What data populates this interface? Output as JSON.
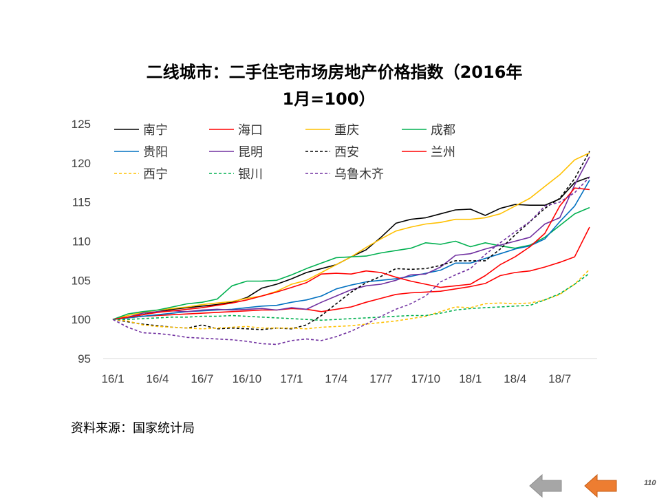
{
  "title_line1": "二线城市：二手住宅市场房地产价格指数（2016年",
  "title_line2": "1月=100）",
  "source": "资料来源：国家统计局",
  "page_number": "110",
  "nav": {
    "prev_icon": "arrow-left-gray-icon",
    "next_icon": "arrow-left-orange-icon",
    "prev_color": "#a6a6a6",
    "next_color": "#ed7d31"
  },
  "chart_data": {
    "type": "line",
    "title": "二线城市：二手住宅市场房地产价格指数（2016年1月=100）",
    "xlabel": "",
    "ylabel": "",
    "ylim": [
      95,
      125
    ],
    "yticks": [
      "95",
      "100",
      "105",
      "110",
      "115",
      "120",
      "125"
    ],
    "x_tick_labels": [
      "16/1",
      "16/4",
      "16/7",
      "16/10",
      "17/1",
      "17/4",
      "17/7",
      "17/10",
      "18/1",
      "18/4",
      "18/7"
    ],
    "n_points": 33,
    "grid": false,
    "legend_position": "top-left",
    "series": [
      {
        "name": "南宁",
        "color": "#000000",
        "dash": "solid",
        "values": [
          100,
          100.3,
          100.6,
          101.0,
          101.3,
          101.5,
          101.7,
          101.9,
          102.2,
          102.8,
          104.0,
          104.5,
          105.2,
          106.0,
          106.5,
          107.0,
          108.0,
          108.9,
          110.5,
          112.3,
          112.8,
          113.0,
          113.5,
          114.0,
          114.1,
          113.3,
          114.2,
          114.7,
          114.6,
          114.6,
          115.4,
          117.5,
          118.2
        ]
      },
      {
        "name": "海口",
        "color": "#ff0000",
        "dash": "solid",
        "values": [
          100,
          100.2,
          100.4,
          100.5,
          100.6,
          100.7,
          100.8,
          100.9,
          101.0,
          101.1,
          101.2,
          101.2,
          101.4,
          101.3,
          101.0,
          101.3,
          101.6,
          102.2,
          102.7,
          103.2,
          103.4,
          103.5,
          103.6,
          103.9,
          104.2,
          104.6,
          105.6,
          106.0,
          106.2,
          106.7,
          107.3,
          108.0,
          111.8
        ]
      },
      {
        "name": "重庆",
        "color": "#ffc000",
        "dash": "solid",
        "values": [
          100,
          100.5,
          100.9,
          101.2,
          101.4,
          101.6,
          101.9,
          102.1,
          102.3,
          102.7,
          103.0,
          103.6,
          104.5,
          105.0,
          106.0,
          107.0,
          108.0,
          109.2,
          110.3,
          111.3,
          111.8,
          112.2,
          112.4,
          112.8,
          112.8,
          113.0,
          113.5,
          114.5,
          115.5,
          117.0,
          118.5,
          120.4,
          121.3
        ]
      },
      {
        "name": "成都",
        "color": "#00b050",
        "dash": "solid",
        "values": [
          100,
          100.7,
          101.0,
          101.2,
          101.6,
          102.0,
          102.2,
          102.6,
          104.3,
          104.9,
          104.9,
          105.0,
          105.7,
          106.5,
          107.2,
          107.9,
          108.0,
          108.1,
          108.5,
          108.8,
          109.1,
          109.8,
          109.6,
          110.0,
          109.3,
          109.8,
          109.4,
          109.1,
          109.5,
          110.5,
          112.0,
          113.5,
          114.3
        ]
      },
      {
        "name": "贵阳",
        "color": "#0070c0",
        "dash": "solid",
        "values": [
          100,
          100.2,
          100.4,
          100.6,
          100.8,
          101.0,
          101.1,
          101.2,
          101.3,
          101.5,
          101.7,
          101.8,
          102.2,
          102.5,
          103.0,
          103.9,
          104.4,
          104.8,
          105.0,
          105.2,
          105.5,
          105.9,
          106.3,
          107.2,
          107.2,
          107.8,
          108.4,
          109.0,
          109.4,
          110.3,
          112.5,
          114.5,
          117.8
        ]
      },
      {
        "name": "昆明",
        "color": "#7030a0",
        "dash": "solid",
        "values": [
          100,
          100.3,
          100.8,
          101.0,
          101.1,
          101.0,
          101.2,
          101.3,
          101.2,
          101.3,
          101.4,
          101.2,
          101.5,
          101.3,
          102.2,
          103.0,
          103.8,
          104.3,
          104.5,
          105.0,
          105.7,
          105.8,
          106.7,
          108.2,
          108.4,
          109.0,
          109.5,
          110.0,
          110.5,
          112.2,
          113.0,
          117.2,
          120.8
        ]
      },
      {
        "name": "西安",
        "color": "#000000",
        "dash": "dash",
        "values": [
          100,
          99.7,
          99.4,
          99.2,
          99.0,
          98.9,
          99.3,
          98.8,
          98.9,
          98.8,
          98.7,
          98.9,
          98.8,
          99.3,
          100.5,
          102.0,
          103.5,
          104.7,
          105.5,
          106.5,
          106.4,
          106.5,
          106.9,
          107.5,
          107.5,
          107.5,
          109.0,
          110.8,
          112.5,
          114.2,
          115.5,
          118.0,
          121.5
        ]
      },
      {
        "name": "兰州",
        "color": "#ff0000",
        "dash": "solid",
        "values": [
          100,
          100.3,
          100.6,
          100.9,
          101.1,
          101.3,
          101.5,
          101.8,
          102.1,
          102.5,
          103.0,
          103.5,
          104.1,
          104.7,
          105.8,
          105.9,
          105.8,
          106.2,
          106.0,
          105.4,
          104.9,
          104.5,
          104.1,
          104.3,
          104.5,
          105.6,
          107.0,
          108.0,
          109.3,
          111.0,
          114.5,
          116.8,
          116.6
        ]
      },
      {
        "name": "西宁",
        "color": "#ffc000",
        "dash": "dash",
        "values": [
          100,
          99.8,
          99.3,
          99.1,
          99.0,
          98.9,
          98.8,
          98.9,
          99.0,
          99.1,
          98.9,
          98.9,
          98.9,
          98.8,
          99.0,
          99.1,
          99.2,
          99.4,
          99.6,
          99.8,
          100.1,
          100.4,
          101.0,
          101.6,
          101.5,
          102.0,
          102.1,
          102.0,
          102.1,
          102.5,
          103.2,
          104.5,
          106.4
        ]
      },
      {
        "name": "银川",
        "color": "#00b050",
        "dash": "dash",
        "values": [
          100,
          100.0,
          100.1,
          100.2,
          100.3,
          100.3,
          100.4,
          100.4,
          100.5,
          100.4,
          100.3,
          100.2,
          100.1,
          100.0,
          99.9,
          100.0,
          100.1,
          100.2,
          100.3,
          100.4,
          100.5,
          100.5,
          100.8,
          101.2,
          101.4,
          101.5,
          101.6,
          101.7,
          101.8,
          102.5,
          103.3,
          104.5,
          105.9
        ]
      },
      {
        "name": "乌鲁木齐",
        "color": "#7030a0",
        "dash": "dash",
        "values": [
          100,
          99.0,
          98.3,
          98.2,
          98.0,
          97.7,
          97.6,
          97.5,
          97.4,
          97.2,
          96.9,
          96.8,
          97.3,
          97.5,
          97.3,
          97.8,
          98.5,
          99.4,
          100.4,
          101.3,
          102.0,
          103.0,
          104.8,
          105.7,
          106.5,
          108.3,
          109.8,
          111.2,
          112.5,
          114.5,
          115.0,
          116.2,
          118.2
        ]
      }
    ]
  }
}
